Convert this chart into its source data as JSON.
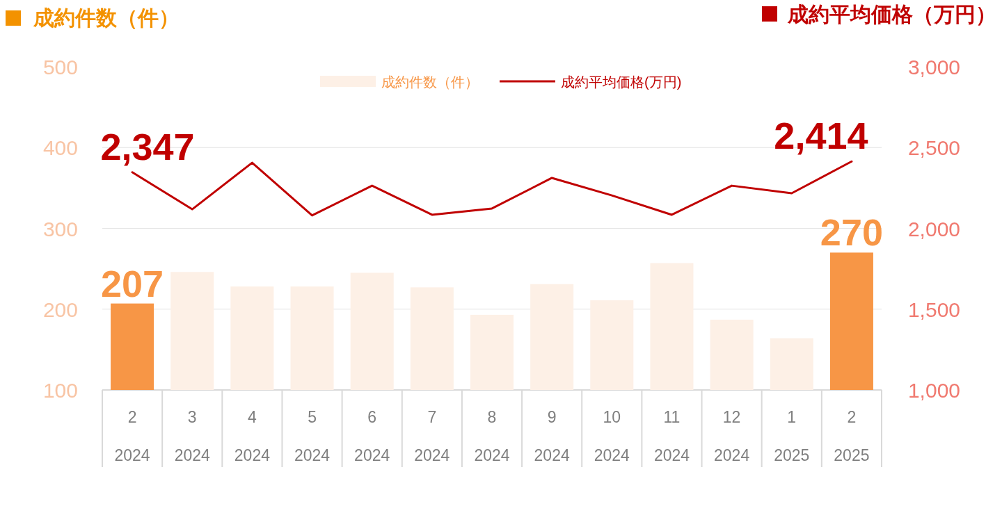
{
  "chart_data": {
    "type": "bar",
    "ylabel": "成約件数（件）",
    "y2label": "成約平均価格（万円）",
    "categories": [
      "2\n2024",
      "3\n2024",
      "4\n2024",
      "5\n2024",
      "6\n2024",
      "7\n2024",
      "8\n2024",
      "9\n2024",
      "10\n2024",
      "11\n2024",
      "12\n2024",
      "1\n2025",
      "2\n2025"
    ],
    "series": [
      {
        "name": "成約件数（件）",
        "color": "#fdf0e6",
        "colors": [
          "#f79646",
          "#fdf0e6",
          "#fdf0e6",
          "#fdf0e6",
          "#fdf0e6",
          "#fdf0e6",
          "#fdf0e6",
          "#fdf0e6",
          "#fdf0e6",
          "#fdf0e6",
          "#fdf0e6",
          "#fdf0e6",
          "#f79646"
        ],
        "values": [
          207,
          246,
          228,
          228,
          245,
          227,
          193,
          231,
          211,
          257,
          187,
          164,
          270
        ],
        "value_labels": [
          "207",
          null,
          null,
          null,
          null,
          null,
          null,
          null,
          null,
          null,
          null,
          null,
          "270"
        ]
      },
      {
        "name": "成約平均価格(万円)",
        "type": "line",
        "axis": "y2",
        "color": "#c00000",
        "values": [
          2347,
          2118,
          2406,
          2080,
          2264,
          2084,
          2123,
          2312,
          2204,
          2084,
          2264,
          2217,
          2414
        ],
        "value_labels": [
          "2,347",
          null,
          null,
          null,
          null,
          null,
          null,
          null,
          null,
          null,
          null,
          null,
          "2,414"
        ]
      }
    ],
    "ylim": [
      100,
      500
    ],
    "yticks": [
      100,
      200,
      300,
      400,
      500
    ],
    "y2lim": [
      1000,
      3000
    ],
    "y2ticks": [
      {
        "value": 1000,
        "label": "1,000"
      },
      {
        "value": 1500,
        "label": "1,500"
      },
      {
        "value": 2000,
        "label": "2,000"
      },
      {
        "value": 2500,
        "label": "2,500"
      },
      {
        "value": 3000,
        "label": "3,000"
      }
    ],
    "grid": "y",
    "legend": "top",
    "marker": "none",
    "line_style": "solid"
  }
}
